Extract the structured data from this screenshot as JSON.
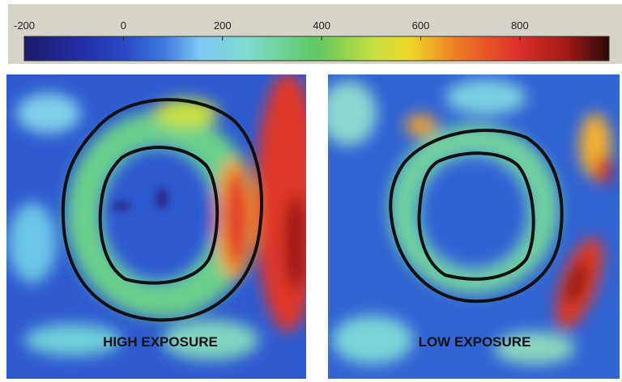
{
  "colorbar": {
    "range": [
      -200,
      980
    ],
    "ticks": [
      -200,
      0,
      200,
      400,
      600,
      800
    ]
  },
  "panels": [
    {
      "label": "HIGH EXPOSURE"
    },
    {
      "label": "LOW EXPOSURE"
    }
  ]
}
